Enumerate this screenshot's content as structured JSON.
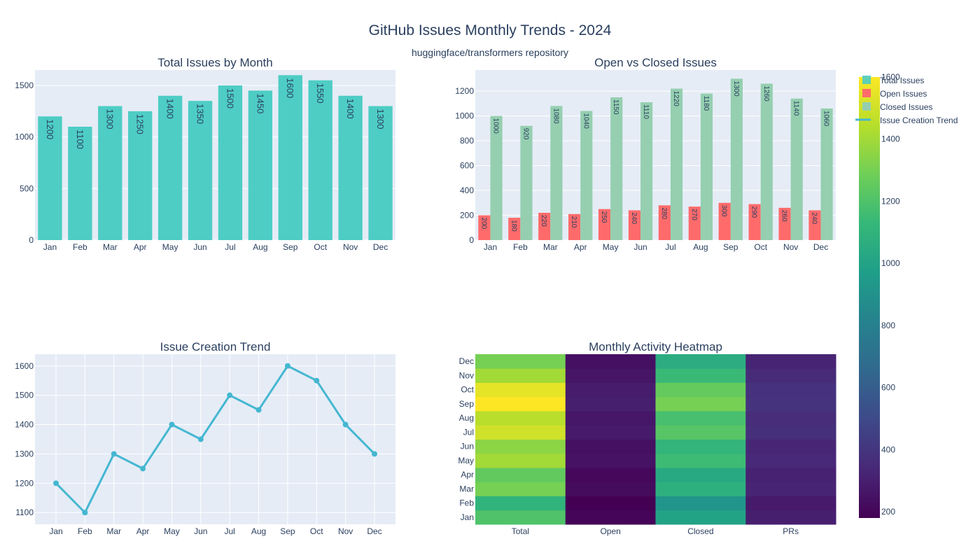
{
  "figure": {
    "title": "GitHub Issues Monthly Trends - 2024",
    "subtitle": "huggingface/transformers repository"
  },
  "legend": {
    "items": [
      {
        "label": "Total Issues",
        "color": "#4ECDC4"
      },
      {
        "label": "Open Issues",
        "color": "#FF6B6B"
      },
      {
        "label": "Closed Issues",
        "color": "#95CFB0"
      },
      {
        "label": "Issue Creation Trend",
        "color": "#45B7D1"
      }
    ]
  },
  "colorbar": {
    "ticks": [
      200,
      400,
      600,
      800,
      1000,
      1200,
      1400,
      1600
    ],
    "range": [
      180,
      1600
    ],
    "colors": [
      "#440154",
      "#482878",
      "#3e4989",
      "#31688e",
      "#26828e",
      "#1f9e89",
      "#35b779",
      "#6ece58",
      "#b5de2b",
      "#fde725"
    ]
  },
  "chart_data": [
    {
      "type": "bar",
      "title": "Total Issues by Month",
      "categories": [
        "Jan",
        "Feb",
        "Mar",
        "Apr",
        "May",
        "Jun",
        "Jul",
        "Aug",
        "Sep",
        "Oct",
        "Nov",
        "Dec"
      ],
      "values": [
        1200,
        1100,
        1300,
        1250,
        1400,
        1350,
        1500,
        1450,
        1600,
        1550,
        1400,
        1300
      ],
      "yticks": [
        0,
        500,
        1000,
        1500
      ],
      "ylim": [
        0,
        1650
      ],
      "color": "#4ECDC4",
      "grid": true
    },
    {
      "type": "bar",
      "title": "Open vs Closed Issues",
      "categories": [
        "Jan",
        "Feb",
        "Mar",
        "Apr",
        "May",
        "Jun",
        "Jul",
        "Aug",
        "Sep",
        "Oct",
        "Nov",
        "Dec"
      ],
      "series": [
        {
          "values": [
            200,
            180,
            220,
            210,
            250,
            240,
            280,
            270,
            300,
            290,
            260,
            240
          ],
          "color": "#FF6B6B"
        },
        {
          "values": [
            1000,
            920,
            1080,
            1040,
            1150,
            1110,
            1220,
            1180,
            1300,
            1260,
            1140,
            1060
          ],
          "color": "#95CFB0"
        }
      ],
      "yticks": [
        0,
        200,
        400,
        600,
        800,
        1000,
        1200
      ],
      "ylim": [
        0,
        1370
      ],
      "grid": true
    },
    {
      "type": "line",
      "title": "Issue Creation Trend",
      "categories": [
        "Jan",
        "Feb",
        "Mar",
        "Apr",
        "May",
        "Jun",
        "Jul",
        "Aug",
        "Sep",
        "Oct",
        "Nov",
        "Dec"
      ],
      "values": [
        1200,
        1100,
        1300,
        1250,
        1400,
        1350,
        1500,
        1450,
        1600,
        1550,
        1400,
        1300
      ],
      "yticks": [
        1100,
        1200,
        1300,
        1400,
        1500,
        1600
      ],
      "ylim": [
        1060,
        1640
      ],
      "color": "#45B7D1",
      "grid": true
    },
    {
      "type": "heatmap",
      "title": "Monthly Activity Heatmap",
      "x": [
        "Total",
        "Open",
        "Closed",
        "PRs"
      ],
      "y": [
        "Jan",
        "Feb",
        "Mar",
        "Apr",
        "May",
        "Jun",
        "Jul",
        "Aug",
        "Sep",
        "Oct",
        "Nov",
        "Dec"
      ],
      "z": [
        [
          1200,
          200,
          1000,
          300
        ],
        [
          1100,
          180,
          920,
          280
        ],
        [
          1300,
          220,
          1080,
          320
        ],
        [
          1250,
          210,
          1040,
          310
        ],
        [
          1400,
          250,
          1150,
          340
        ],
        [
          1350,
          240,
          1110,
          330
        ],
        [
          1500,
          280,
          1220,
          370
        ],
        [
          1450,
          270,
          1180,
          360
        ],
        [
          1600,
          300,
          1300,
          390
        ],
        [
          1550,
          290,
          1260,
          380
        ],
        [
          1400,
          260,
          1140,
          350
        ],
        [
          1300,
          240,
          1060,
          320
        ]
      ],
      "zlim": [
        180,
        1600
      ]
    }
  ]
}
